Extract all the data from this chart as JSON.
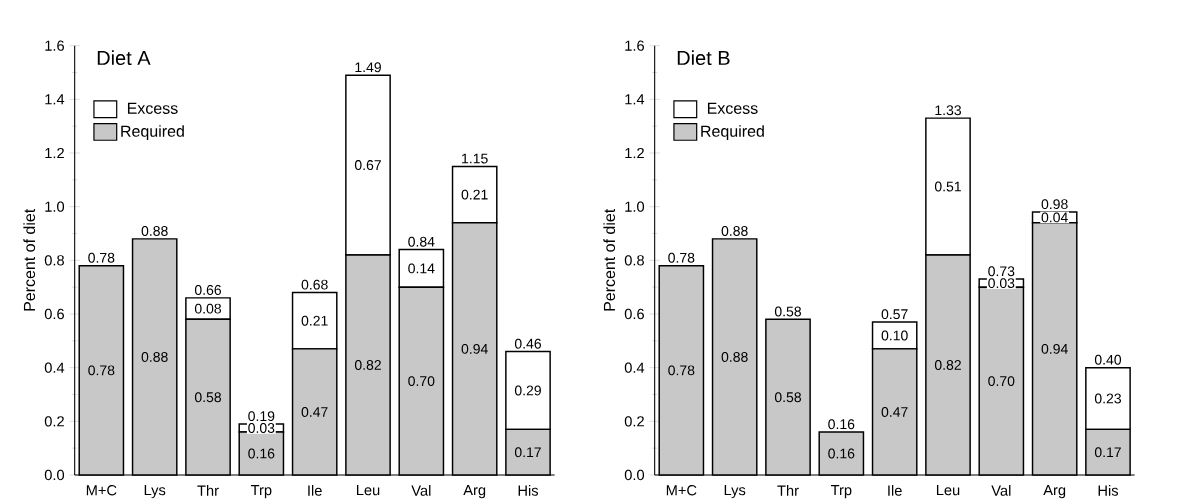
{
  "chart_data": [
    {
      "type": "bar",
      "title": "Diet A",
      "ylabel": "Percent of diet",
      "stacked": true,
      "legend": "top left",
      "categories": [
        "M+C",
        "Lys",
        "Thr",
        "Trp",
        "Ile",
        "Leu",
        "Val",
        "Arg",
        "His"
      ],
      "ylim": [
        0,
        1.6
      ],
      "yticks": [
        {
          "value": 0,
          "label": "0.0"
        },
        {
          "value": 0.2,
          "label": "0.2"
        },
        {
          "value": 0.4,
          "label": "0.4"
        },
        {
          "value": 0.6,
          "label": "0.6"
        },
        {
          "value": 0.8,
          "label": "0.8"
        },
        {
          "value": 1.0,
          "label": "1.0"
        },
        {
          "value": 1.2,
          "label": "1.2"
        },
        {
          "value": 1.4,
          "label": "1.4"
        },
        {
          "value": 1.6,
          "label": "1.6"
        }
      ],
      "series": [
        {
          "name": "Required",
          "color": "#c8c8c8",
          "values": [
            0.78,
            0.88,
            0.58,
            0.16,
            0.47,
            0.82,
            0.7,
            0.94,
            0.17
          ],
          "value_labels": [
            "0.78",
            "0.88",
            "0.58",
            "0.16",
            "0.47",
            "0.82",
            "0.70",
            "0.94",
            "0.17"
          ]
        },
        {
          "name": "Excess",
          "color": "#ffffff",
          "values": [
            0,
            0,
            0.08,
            0.03,
            0.21,
            0.67,
            0.14,
            0.21,
            0.29
          ],
          "value_labels": [
            null,
            null,
            "0.08",
            "0.03",
            "0.21",
            "0.67",
            "0.14",
            "0.21",
            "0.29"
          ]
        }
      ],
      "totals": [
        "0.78",
        "0.88",
        "0.66",
        "0.19",
        "0.68",
        "1.49",
        "0.84",
        "1.15",
        "0.46"
      ]
    },
    {
      "type": "bar",
      "title": "Diet B",
      "ylabel": "Percent of diet",
      "stacked": true,
      "legend": "top left",
      "categories": [
        "M+C",
        "Lys",
        "Thr",
        "Trp",
        "Ile",
        "Leu",
        "Val",
        "Arg",
        "His"
      ],
      "ylim": [
        0,
        1.6
      ],
      "yticks": [
        {
          "value": 0,
          "label": "0.0"
        },
        {
          "value": 0.2,
          "label": "0.2"
        },
        {
          "value": 0.4,
          "label": "0.4"
        },
        {
          "value": 0.6,
          "label": "0.6"
        },
        {
          "value": 0.8,
          "label": "0.8"
        },
        {
          "value": 1.0,
          "label": "1.0"
        },
        {
          "value": 1.2,
          "label": "1.2"
        },
        {
          "value": 1.4,
          "label": "1.4"
        },
        {
          "value": 1.6,
          "label": "1.6"
        }
      ],
      "series": [
        {
          "name": "Required",
          "color": "#c8c8c8",
          "values": [
            0.78,
            0.88,
            0.58,
            0.16,
            0.47,
            0.82,
            0.7,
            0.94,
            0.17
          ],
          "value_labels": [
            "0.78",
            "0.88",
            "0.58",
            "0.16",
            "0.47",
            "0.82",
            "0.70",
            "0.94",
            "0.17"
          ]
        },
        {
          "name": "Excess",
          "color": "#ffffff",
          "values": [
            0,
            0,
            0,
            0,
            0.1,
            0.51,
            0.03,
            0.04,
            0.23
          ],
          "value_labels": [
            null,
            null,
            null,
            null,
            "0.10",
            "0.51",
            "0.03",
            "0.04",
            "0.23"
          ]
        }
      ],
      "totals": [
        "0.78",
        "0.88",
        "0.58",
        "0.16",
        "0.57",
        "1.33",
        "0.73",
        "0.98",
        "0.40"
      ]
    }
  ]
}
